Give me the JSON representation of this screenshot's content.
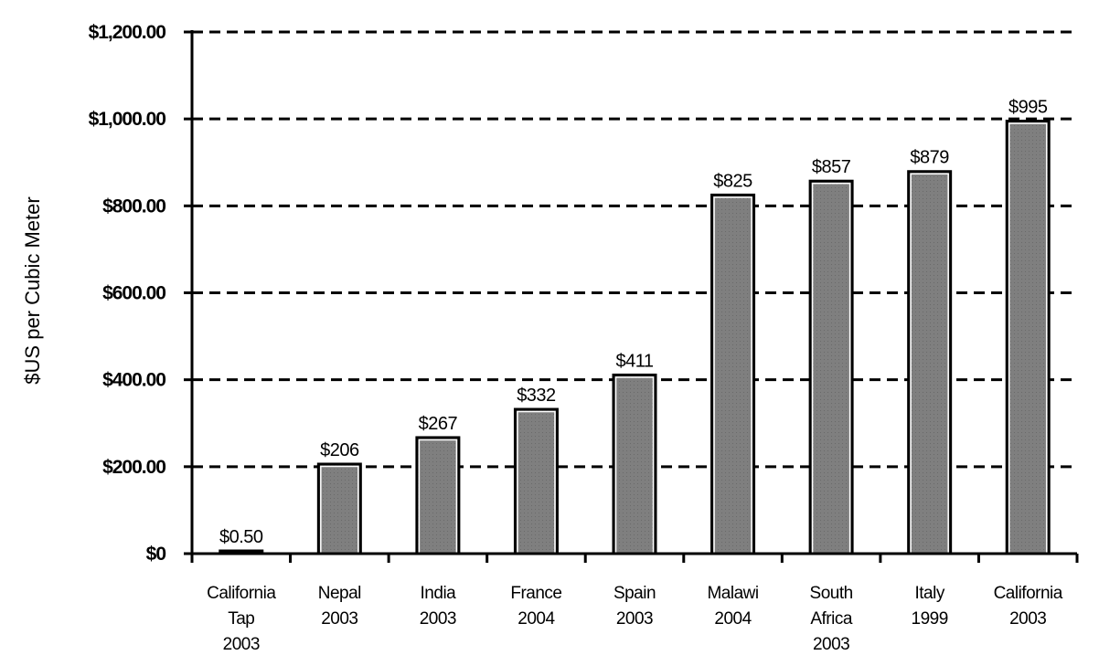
{
  "chart_data": {
    "type": "bar",
    "title": "",
    "xlabel": "",
    "ylabel": "$US per Cubic Meter",
    "ylim": [
      0,
      1200
    ],
    "yticks": [
      0,
      200,
      400,
      600,
      800,
      1000,
      1200
    ],
    "ytick_labels": [
      "$0",
      "$200.00",
      "$400.00",
      "$600.00",
      "$800.00",
      "$1,000.00",
      "$1,200.00"
    ],
    "grid": true,
    "legend": "none",
    "categories": [
      [
        "California",
        "Tap",
        "2003"
      ],
      [
        "Nepal",
        "2003"
      ],
      [
        "India",
        "2003"
      ],
      [
        "France",
        "2004"
      ],
      [
        "Spain",
        "2003"
      ],
      [
        "Malawi",
        "2004"
      ],
      [
        "South",
        "Africa",
        "2003"
      ],
      [
        "Italy",
        "1999"
      ],
      [
        "California",
        "2003"
      ]
    ],
    "values": [
      0.5,
      206,
      267,
      332,
      411,
      825,
      857,
      879,
      995
    ],
    "data_labels": [
      "$0.50",
      "$206",
      "$267",
      "$332",
      "$411",
      "$825",
      "$857",
      "$879",
      "$995"
    ]
  },
  "colors": {
    "bar_fill": "#7f7f7f",
    "bar_stroke": "#000000",
    "bar_highlight": "#ffffff",
    "grid": "#000000",
    "axis": "#000000"
  }
}
